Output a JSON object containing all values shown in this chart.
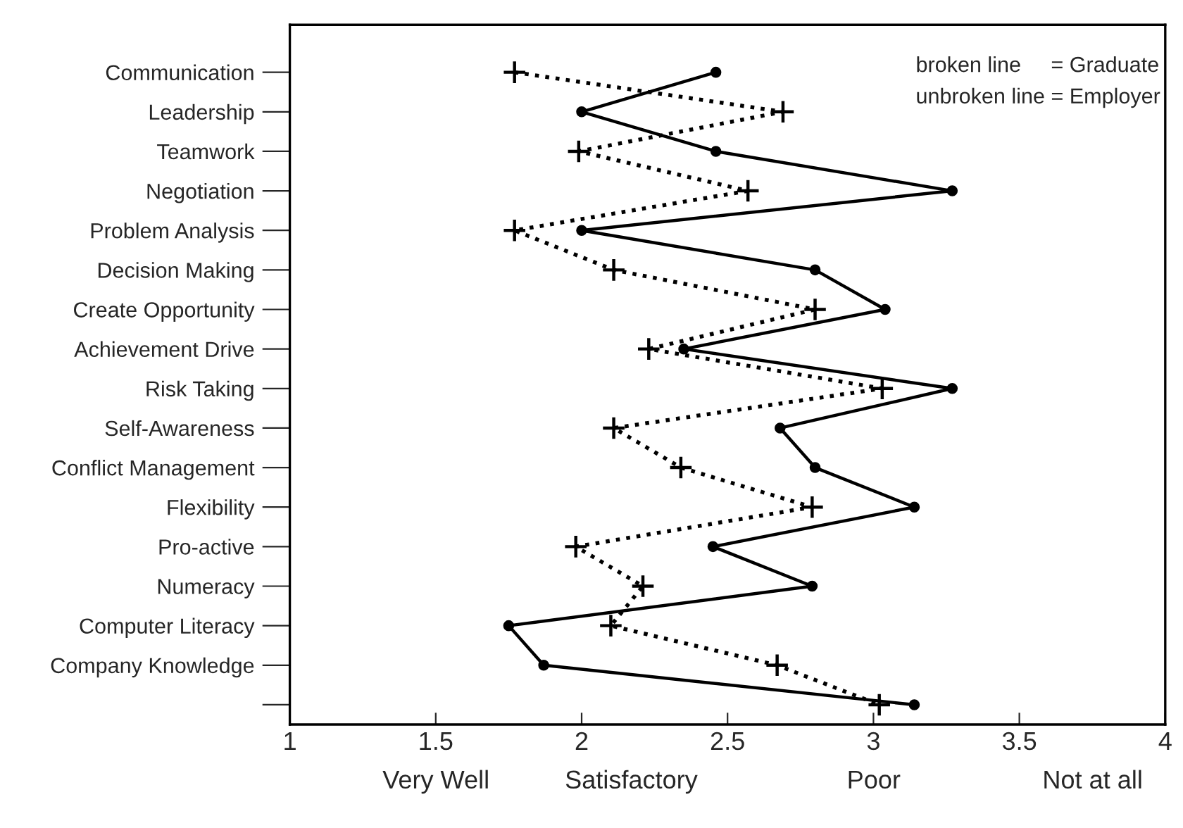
{
  "chart_data": {
    "type": "line",
    "orientation": "horizontal",
    "categories": [
      "Communication",
      "Leadership",
      "Teamwork",
      "Negotiation",
      "Problem Analysis",
      "Decision Making",
      "Create Opportunity",
      "Achievement Drive",
      "Risk Taking",
      "Self-Awareness",
      "Conflict Management",
      "Flexibility",
      "Pro-active",
      "Numeracy",
      "Computer Literacy",
      "Company Knowledge",
      null
    ],
    "series": [
      {
        "color": "#000000",
        "line_style": "dotted",
        "marker": "cross",
        "values": [
          1.77,
          2.69,
          1.99,
          2.57,
          1.77,
          2.11,
          2.8,
          2.23,
          3.03,
          2.11,
          2.34,
          2.79,
          1.98,
          2.21,
          2.1,
          2.67,
          3.02
        ]
      },
      {
        "color": "#000000",
        "line_style": "solid",
        "marker": "circle",
        "values": [
          2.46,
          2.0,
          2.46,
          3.27,
          2.0,
          2.8,
          3.04,
          2.35,
          3.27,
          2.68,
          2.8,
          3.14,
          2.45,
          2.79,
          1.75,
          1.87,
          3.14
        ]
      }
    ],
    "xlim": [
      1,
      4
    ],
    "xticks": [
      1,
      1.5,
      2,
      2.5,
      3,
      3.5,
      4
    ],
    "annotations": [
      "broken line     = Graduate",
      "unbroken line = Employer",
      "Very Well",
      "Satisfactory",
      "Poor",
      "Not at all"
    ],
    "grid": false,
    "legend": false
  }
}
